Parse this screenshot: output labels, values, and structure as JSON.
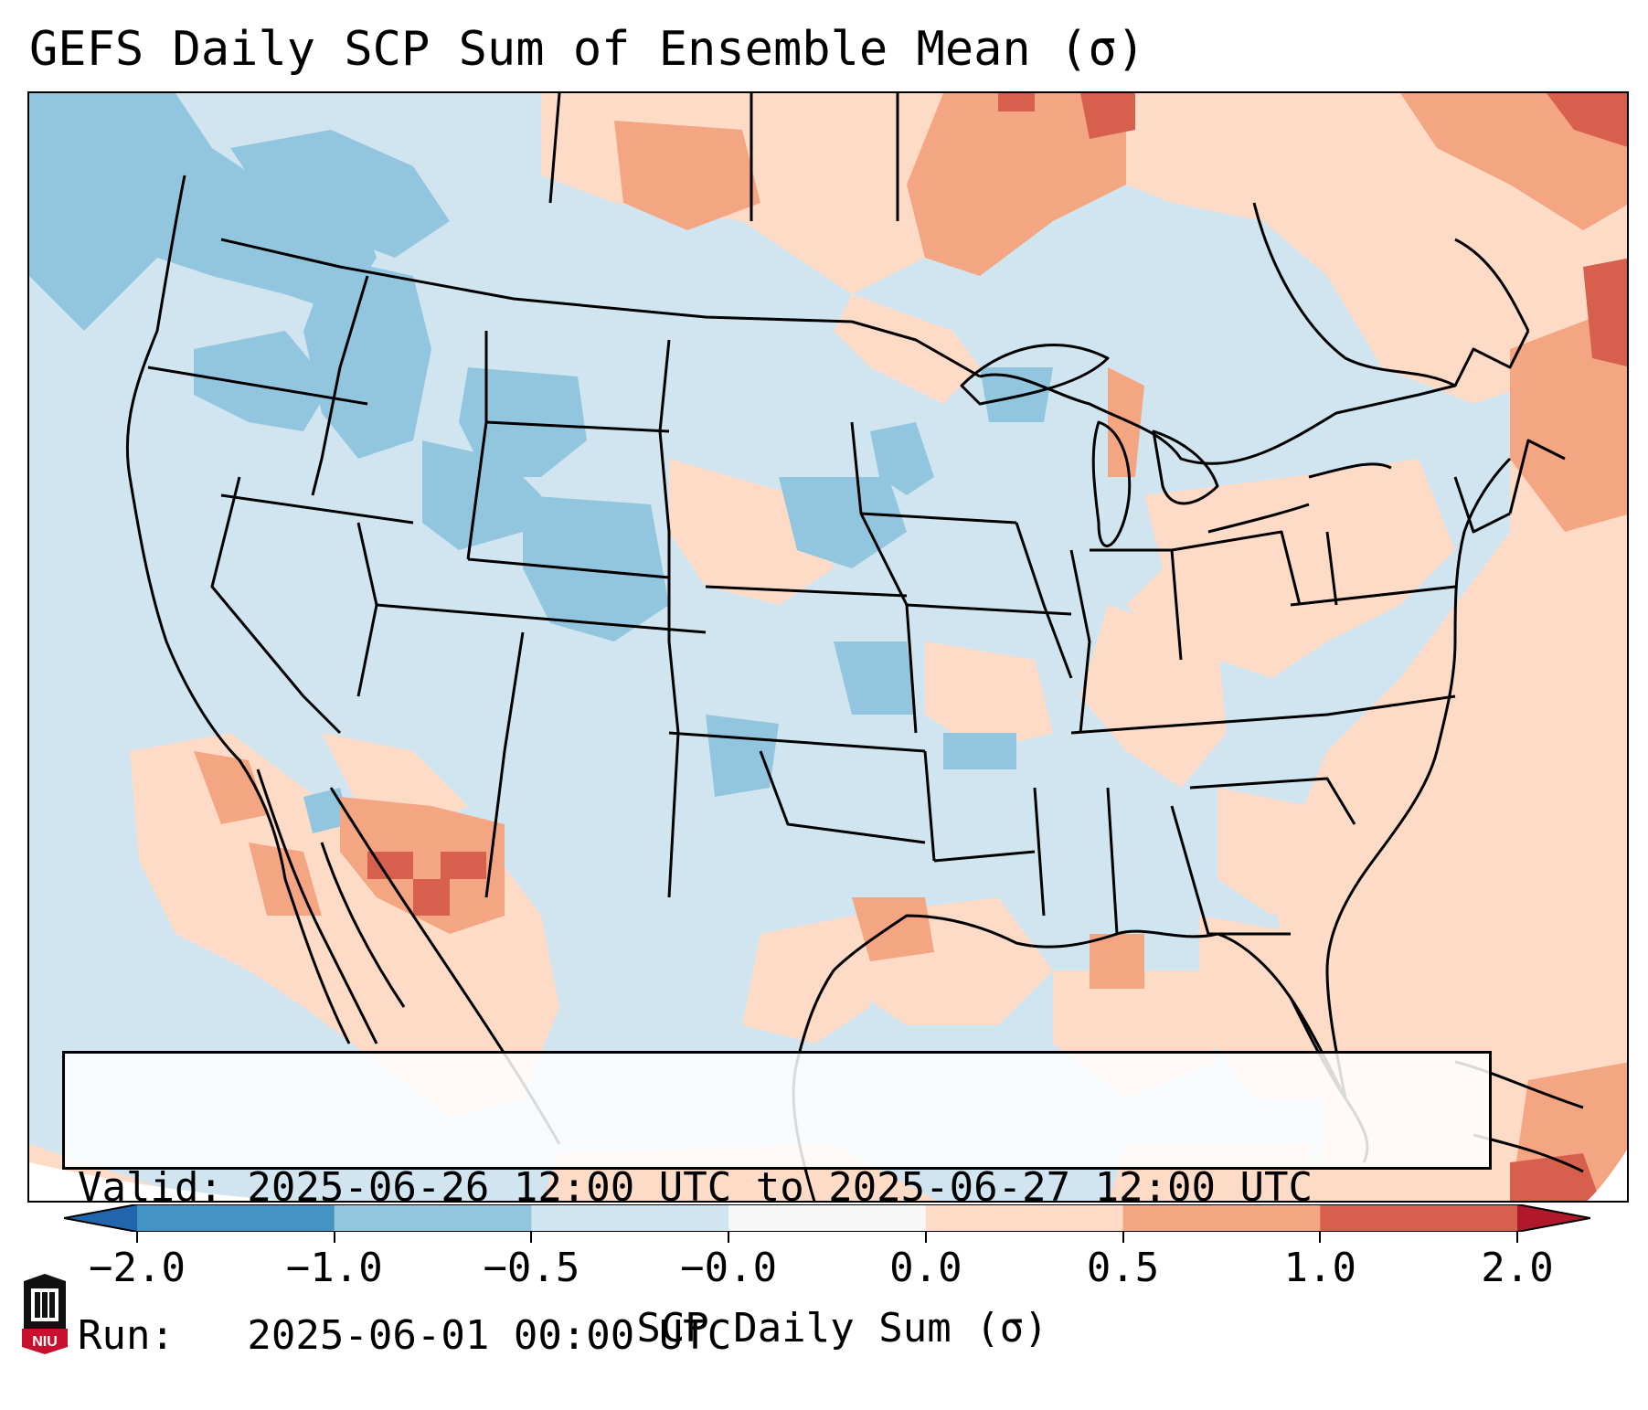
{
  "title": "GEFS Daily SCP Sum of Ensemble Mean (σ)",
  "info": {
    "valid_line": "Valid: 2025-06-26 12:00 UTC to 2025-06-27 12:00 UTC",
    "run_line": "Run:   2025-06-01 00:00 UTC"
  },
  "colorbar": {
    "label": "SCP Daily Sum (σ)",
    "ticks": [
      "−2.0",
      "−1.0",
      "−0.5",
      "−0.0",
      "0.0",
      "0.5",
      "1.0",
      "2.0"
    ],
    "colors": [
      "#4393c3",
      "#92c5de",
      "#d1e5f0",
      "#f7f7f7",
      "#fddbc7",
      "#f4a582",
      "#d6604d"
    ],
    "extend_low_color": "#2166ac",
    "extend_high_color": "#b2182b"
  },
  "logo": {
    "text": "NIU",
    "color": "#c8102e"
  }
}
